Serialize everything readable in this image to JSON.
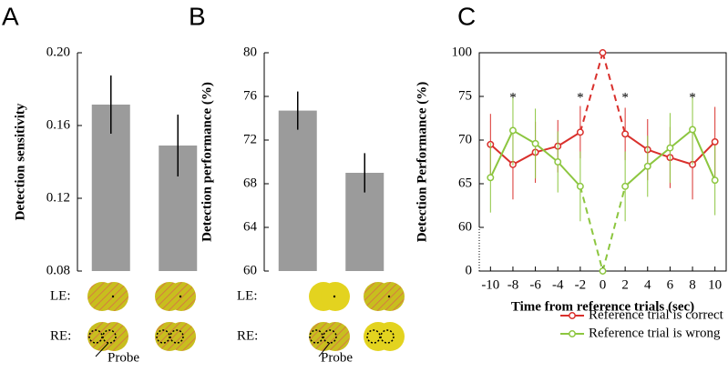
{
  "chart_data": [
    {
      "type": "bar",
      "panel_label": "A",
      "y_label": "Detection sensitivity",
      "categories": [
        null,
        null
      ],
      "values": [
        0.1715,
        0.149
      ],
      "errors": [
        0.016,
        0.017
      ],
      "color": "#9b9b9b",
      "ylim": [
        0.08,
        0.2
      ],
      "yticks": [
        {
          "value": 0.08,
          "label": "0.08"
        },
        {
          "value": 0.12,
          "label": "0.12"
        },
        {
          "value": 0.16,
          "label": "0.16"
        },
        {
          "value": 0.2,
          "label": "0.20"
        }
      ],
      "annotations": [
        "LE:",
        "RE:",
        "Probe"
      ]
    },
    {
      "type": "bar",
      "panel_label": "B",
      "y_label": "Detection performance (%)",
      "categories": [
        null,
        null
      ],
      "values": [
        74.7,
        69.0
      ],
      "errors": [
        1.75,
        1.8
      ],
      "color": "#9b9b9b",
      "ylim": [
        60,
        80
      ],
      "yticks": [
        60,
        64,
        68,
        72,
        76,
        80
      ],
      "annotations": [
        "LE:",
        "RE:",
        "Probe"
      ]
    },
    {
      "type": "line",
      "panel_label": "C",
      "y_label": "Detection Performance (%)",
      "x_label": "Time from reference trials (sec)",
      "x": [
        -10,
        -8,
        -6,
        -4,
        -2,
        0,
        2,
        4,
        6,
        8,
        10
      ],
      "series": [
        {
          "name": "Reference trial is correct",
          "color": "#d9302c",
          "values": [
            69.5,
            67.2,
            68.6,
            69.3,
            70.9,
            100,
            70.7,
            68.9,
            68.0,
            67.2,
            69.8
          ],
          "errors": [
            3.5,
            4,
            3.5,
            3,
            3,
            null,
            3,
            3.5,
            3.5,
            4,
            4
          ]
        },
        {
          "name": "Reference trial is wrong",
          "color": "#8cc63f",
          "values": [
            65.7,
            71.1,
            69.6,
            67.5,
            64.7,
            0,
            64.7,
            67.0,
            69.1,
            71.2,
            65.4
          ],
          "errors": [
            4,
            4,
            4,
            3.5,
            4,
            null,
            4,
            3.5,
            4,
            4,
            4
          ]
        }
      ],
      "xlim": [
        -11,
        11
      ],
      "xticks": [
        -10,
        -8,
        -6,
        -4,
        -2,
        0,
        2,
        4,
        6,
        8,
        10
      ],
      "ylim": [
        0,
        100
      ],
      "yticks": [
        0,
        60,
        65,
        70,
        75,
        100
      ],
      "annotations": [
        {
          "x": -8,
          "text": "*"
        },
        {
          "x": -2,
          "text": "*"
        },
        {
          "x": 2,
          "text": "*"
        },
        {
          "x": 8,
          "text": "*"
        }
      ]
    }
  ]
}
